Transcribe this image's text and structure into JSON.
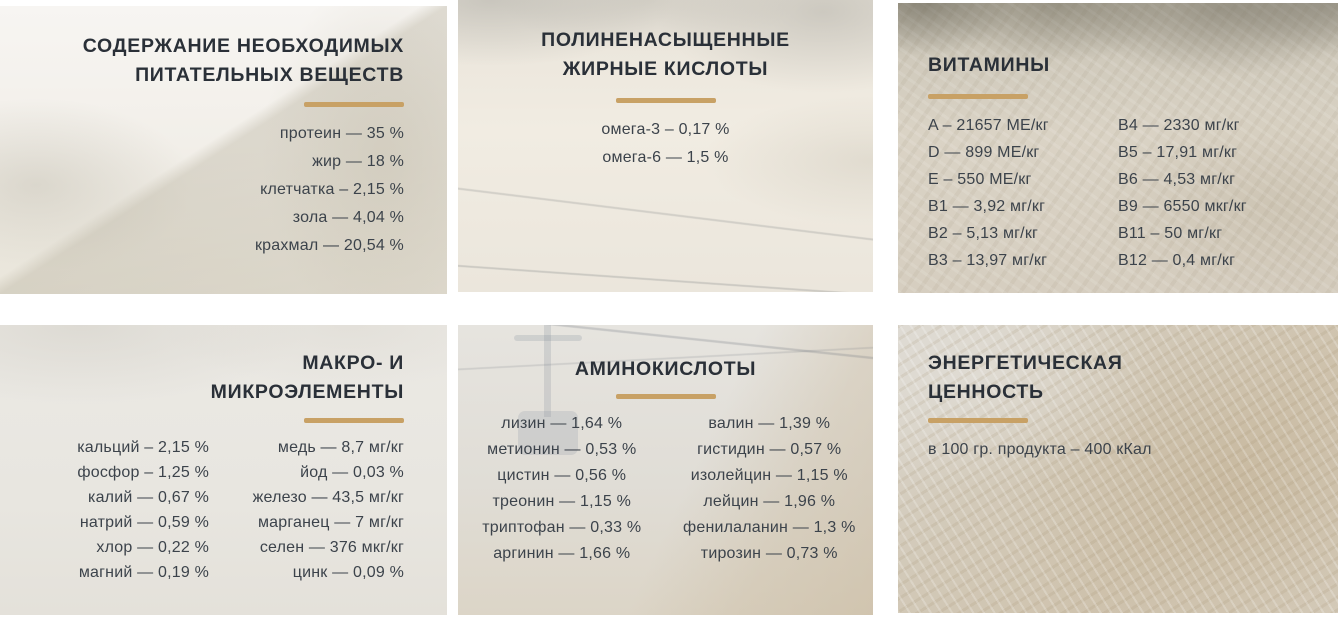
{
  "palette": {
    "accent_divider": "#c8a165",
    "title_text": "#2a3038",
    "body_text": "#3c434b",
    "gap_background": "#ffffff"
  },
  "cards": {
    "nutrients": {
      "title_lines": [
        "СОДЕРЖАНИЕ НЕОБХОДИМЫХ",
        "ПИТАТЕЛЬНЫХ ВЕЩЕСТВ"
      ],
      "items": [
        "протеин — 35 %",
        "жир — 18 %",
        "клетчатка – 2,15 %",
        "зола — 4,04 %",
        "крахмал — 20,54 %"
      ]
    },
    "fatty_acids": {
      "title_lines": [
        "ПОЛИНЕНАСЫЩЕННЫЕ",
        "ЖИРНЫЕ КИСЛОТЫ"
      ],
      "items": [
        "омега-3 – 0,17 %",
        "омега-6 — 1,5 %"
      ]
    },
    "vitamins": {
      "title": "ВИТАМИНЫ",
      "col1": [
        "A – 21657 МЕ/кг",
        "D — 899 МЕ/кг",
        "E – 550 МЕ/кг",
        "B1 — 3,92 мг/кг",
        "B2 – 5,13 мг/кг",
        "B3 – 13,97 мг/кг"
      ],
      "col2": [
        "B4 — 2330 мг/кг",
        "B5 – 17,91 мг/кг",
        "B6 — 4,53 мг/кг",
        "B9 — 6550 мкг/кг",
        "B11 – 50 мг/кг",
        "B12 — 0,4 мг/кг"
      ]
    },
    "minerals": {
      "title_lines": [
        "МАКРО- И",
        "МИКРОЭЛЕМЕНТЫ"
      ],
      "col1": [
        "кальций – 2,15 %",
        "фосфор – 1,25 %",
        "калий — 0,67 %",
        "натрий — 0,59 %",
        "хлор — 0,22 %",
        "магний — 0,19 %"
      ],
      "col2": [
        "медь — 8,7 мг/кг",
        "йод — 0,03 %",
        "железо — 43,5 мг/кг",
        "марганец — 7 мг/кг",
        "селен — 376 мкг/кг",
        "цинк — 0,09 %"
      ]
    },
    "amino_acids": {
      "title": "АМИНОКИСЛОТЫ",
      "col1": [
        "лизин — 1,64 %",
        "метионин — 0,53 %",
        "цистин — 0,56 %",
        "треонин — 1,15 %",
        "триптофан — 0,33 %",
        "аргинин — 1,66 %"
      ],
      "col2": [
        "валин — 1,39 %",
        "гистидин — 0,57 %",
        "изолейцин — 1,15 %",
        "лейцин — 1,96 %",
        "фенилаланин — 1,3 %",
        "тирозин — 0,73 %"
      ]
    },
    "energy": {
      "title_lines": [
        "ЭНЕРГЕТИЧЕСКАЯ",
        "ЦЕННОСТЬ"
      ],
      "text": "в 100 гр. продукта – 400 кКал"
    }
  }
}
